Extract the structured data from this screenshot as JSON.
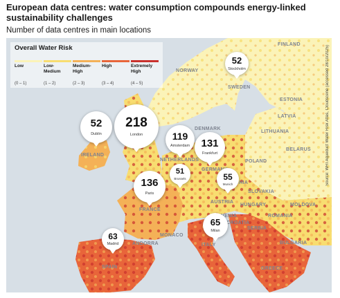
{
  "title": "European data centres: water consumption compounds energy-linked sustainability challenges",
  "subtitle": "Number of data centres in main locations",
  "legend": {
    "title": "Overall Water Risk",
    "levels": [
      {
        "label": "Low",
        "range": "(0 – 1)",
        "color": "#fbf3b8"
      },
      {
        "label": "Low-\nMedium",
        "range": "(1 – 2)",
        "color": "#f8dd70"
      },
      {
        "label": "Medium-\nHigh",
        "range": "(2 – 3)",
        "color": "#f4b157"
      },
      {
        "label": "High",
        "range": "(3 – 4)",
        "color": "#e8653a"
      },
      {
        "label": "Extremely\nHigh",
        "range": "(4 – 5)",
        "color": "#c9302c"
      }
    ]
  },
  "countries": [
    {
      "name": "FINLAND"
    },
    {
      "name": "NORWAY"
    },
    {
      "name": "SWEDEN"
    },
    {
      "name": "ESTONIA"
    },
    {
      "name": "LATVIA"
    },
    {
      "name": "LITHUANIA"
    },
    {
      "name": "DENMARK"
    },
    {
      "name": "BELARUS"
    },
    {
      "name": "IRELAND"
    },
    {
      "name": "NETHERLANDS"
    },
    {
      "name": "GERMANY"
    },
    {
      "name": "POLAND"
    },
    {
      "name": "CZECHIA"
    },
    {
      "name": "SLOVAKIA"
    },
    {
      "name": "AUSTRIA"
    },
    {
      "name": "HUNGARY"
    },
    {
      "name": "MOLDOVA"
    },
    {
      "name": "FRANCE"
    },
    {
      "name": "SLOVENIA"
    },
    {
      "name": "CROATIA"
    },
    {
      "name": "ROMANIA"
    },
    {
      "name": "SERBIA"
    },
    {
      "name": "BULGARIA"
    },
    {
      "name": "MONACO"
    },
    {
      "name": "ITALY"
    },
    {
      "name": "ANDORRA"
    },
    {
      "name": "SPAIN"
    },
    {
      "name": "GREECE"
    }
  ],
  "locations": [
    {
      "city": "Stockholm",
      "count": "52"
    },
    {
      "city": "Dublin",
      "count": "52"
    },
    {
      "city": "London",
      "count": "218"
    },
    {
      "city": "Amsterdam",
      "count": "119"
    },
    {
      "city": "Frankfurt",
      "count": "131"
    },
    {
      "city": "Brussels",
      "count": "51"
    },
    {
      "city": "Munich",
      "count": "55"
    },
    {
      "city": "Paris",
      "count": "136"
    },
    {
      "city": "Milan",
      "count": "65"
    },
    {
      "city": "Madrid",
      "count": "63"
    }
  ],
  "source": "Source: WRI Aqueduct Water Risk Atlas, Cloudscene (accessed 28/10/2025)"
}
